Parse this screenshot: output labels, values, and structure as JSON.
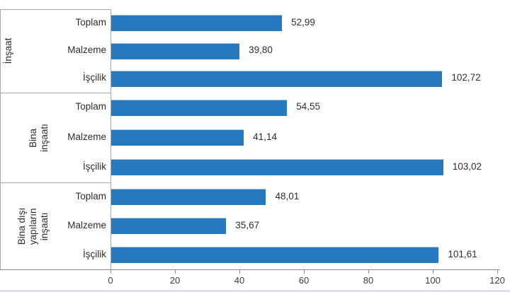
{
  "chart_data": {
    "type": "bar",
    "orientation": "horizontal",
    "title": "",
    "bar_color": "#2878BE",
    "value_decimal_separator": ",",
    "x_axis": {
      "min": 0,
      "max": 120,
      "ticks": [
        "0",
        "20",
        "40",
        "60",
        "80",
        "100",
        "120"
      ],
      "tick_values": [
        0,
        20,
        40,
        60,
        80,
        100,
        120
      ]
    },
    "grid": "off",
    "legend": "none",
    "groups": [
      {
        "label": "İnşaat",
        "items": [
          {
            "category": "Toplam",
            "value": 52.99,
            "value_label": "52,99"
          },
          {
            "category": "Malzeme",
            "value": 39.8,
            "value_label": "39,80"
          },
          {
            "category": "İşçilik",
            "value": 102.72,
            "value_label": "102,72"
          }
        ]
      },
      {
        "label": "Bina\ninşaatı",
        "items": [
          {
            "category": "Toplam",
            "value": 54.55,
            "value_label": "54,55"
          },
          {
            "category": "Malzeme",
            "value": 41.14,
            "value_label": "41,14"
          },
          {
            "category": "İşçilik",
            "value": 103.02,
            "value_label": "103,02"
          }
        ]
      },
      {
        "label": "Bina dışı\nyapıların\ninşaatı",
        "items": [
          {
            "category": "Toplam",
            "value": 48.01,
            "value_label": "48,01"
          },
          {
            "category": "Malzeme",
            "value": 35.67,
            "value_label": "35,67"
          },
          {
            "category": "İşçilik",
            "value": 101.61,
            "value_label": "101,61"
          }
        ]
      }
    ]
  }
}
